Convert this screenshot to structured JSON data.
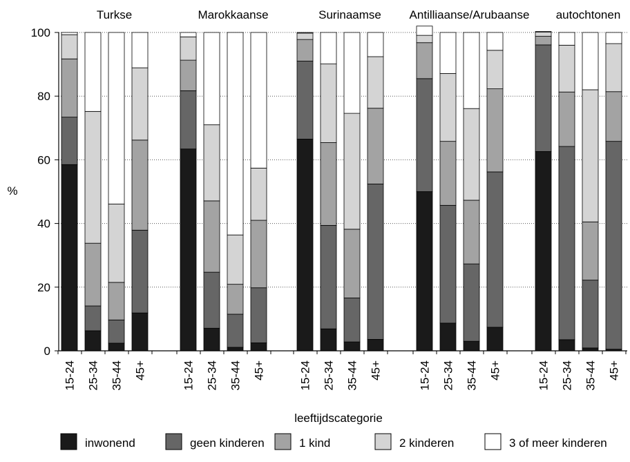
{
  "chart_data": {
    "type": "bar",
    "stacked": true,
    "groups": [
      "Turkse",
      "Marokkaanse",
      "Surinaamse",
      "Antilliaanse/Arubaanse",
      "autochtonen"
    ],
    "categories": [
      "15-24",
      "25-34",
      "35-44",
      "45+"
    ],
    "xlabel": "leeftijdscategorie",
    "ylabel": "%",
    "ylim": [
      0,
      100
    ],
    "yticks": [
      0,
      20,
      40,
      60,
      80,
      100
    ],
    "grid": "horizontal dotted",
    "legend_position": "bottom",
    "series": [
      {
        "name": "inwonend",
        "color": "#1a1a1a",
        "values": [
          [
            58.5,
            6.3,
            2.4,
            11.9
          ],
          [
            63.4,
            7.1,
            1.1,
            2.5
          ],
          [
            66.5,
            6.9,
            2.8,
            3.6
          ],
          [
            50.0,
            8.7,
            3.0,
            7.4
          ],
          [
            62.6,
            3.5,
            0.9,
            0.5
          ]
        ]
      },
      {
        "name": "geen kinderen",
        "color": "#666666",
        "values": [
          [
            14.9,
            7.8,
            7.3,
            26.0
          ],
          [
            18.3,
            17.6,
            10.4,
            17.3
          ],
          [
            24.5,
            32.5,
            13.8,
            48.8
          ],
          [
            35.5,
            37.0,
            24.3,
            48.8
          ],
          [
            33.5,
            60.7,
            21.3,
            65.3
          ]
        ]
      },
      {
        "name": "1 kind",
        "color": "#a3a3a3",
        "values": [
          [
            18.3,
            19.7,
            11.8,
            28.3
          ],
          [
            9.6,
            22.4,
            9.4,
            21.2
          ],
          [
            6.8,
            26.0,
            21.6,
            23.8
          ],
          [
            11.3,
            20.1,
            20.0,
            26.1
          ],
          [
            2.7,
            17.1,
            18.3,
            15.6
          ]
        ]
      },
      {
        "name": "2 kinderen",
        "color": "#d4d4d4",
        "values": [
          [
            7.6,
            41.4,
            24.6,
            22.7
          ],
          [
            7.3,
            23.9,
            15.5,
            16.4
          ],
          [
            2.0,
            24.7,
            36.4,
            16.2
          ],
          [
            2.3,
            21.3,
            28.8,
            12.1
          ],
          [
            1.3,
            14.7,
            41.5,
            15.1
          ]
        ]
      },
      {
        "name": "3 of meer kinderen",
        "color": "#ffffff",
        "values": [
          [
            0.7,
            24.8,
            53.9,
            11.1
          ],
          [
            1.4,
            29.0,
            63.6,
            42.6
          ],
          [
            0.2,
            9.9,
            25.4,
            7.6
          ],
          [
            2.9,
            12.9,
            23.9,
            5.6
          ],
          [
            0.2,
            4.0,
            18.0,
            3.5
          ]
        ]
      }
    ]
  }
}
